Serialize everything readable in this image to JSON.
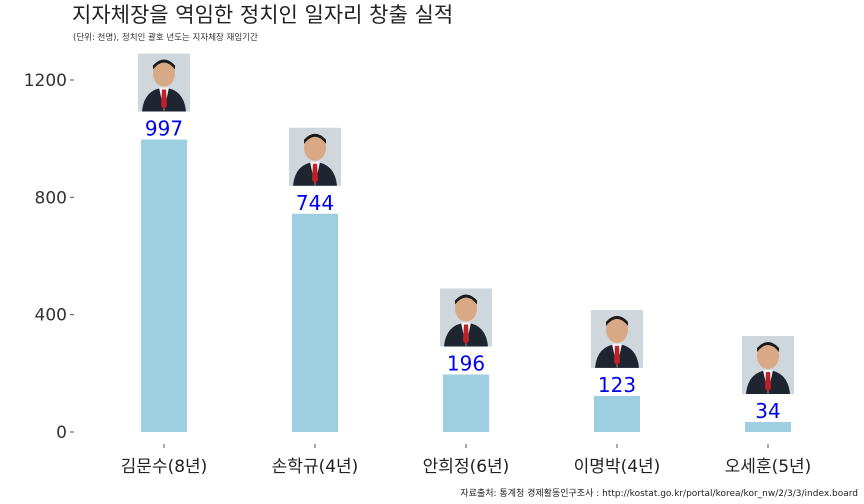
{
  "chart_data": {
    "type": "bar",
    "title": "지자체장을 역임한 정치인 일자리 창출 실적",
    "subtitle": "(단위: 천명), 정치인 괄호 년도는 지자체장 재임기간",
    "caption": "자료출처: 통계청 경제활동인구조사 : http://kostat.go.kr/portal/korea/kor_nw/2/3/3/index.board",
    "categories": [
      "김문수(8년)",
      "손학규(4년)",
      "안희정(6년)",
      "이명박(4년)",
      "오세훈(5년)"
    ],
    "values": [
      997,
      744,
      196,
      123,
      34
    ],
    "value_labels": [
      "997",
      "744",
      "196",
      "123",
      "34"
    ],
    "yticks": [
      "0",
      "400",
      "800",
      "1200"
    ],
    "ytick_values": [
      0,
      400,
      800,
      1200
    ],
    "ylim": [
      0,
      1210
    ],
    "bar_color": "#9ecfe0",
    "label_color": "#0000ee",
    "xlabel": "",
    "ylabel": "",
    "grid": false,
    "photos": [
      "portrait-photo",
      "portrait-photo",
      "portrait-photo",
      "portrait-photo",
      "portrait-photo"
    ]
  }
}
